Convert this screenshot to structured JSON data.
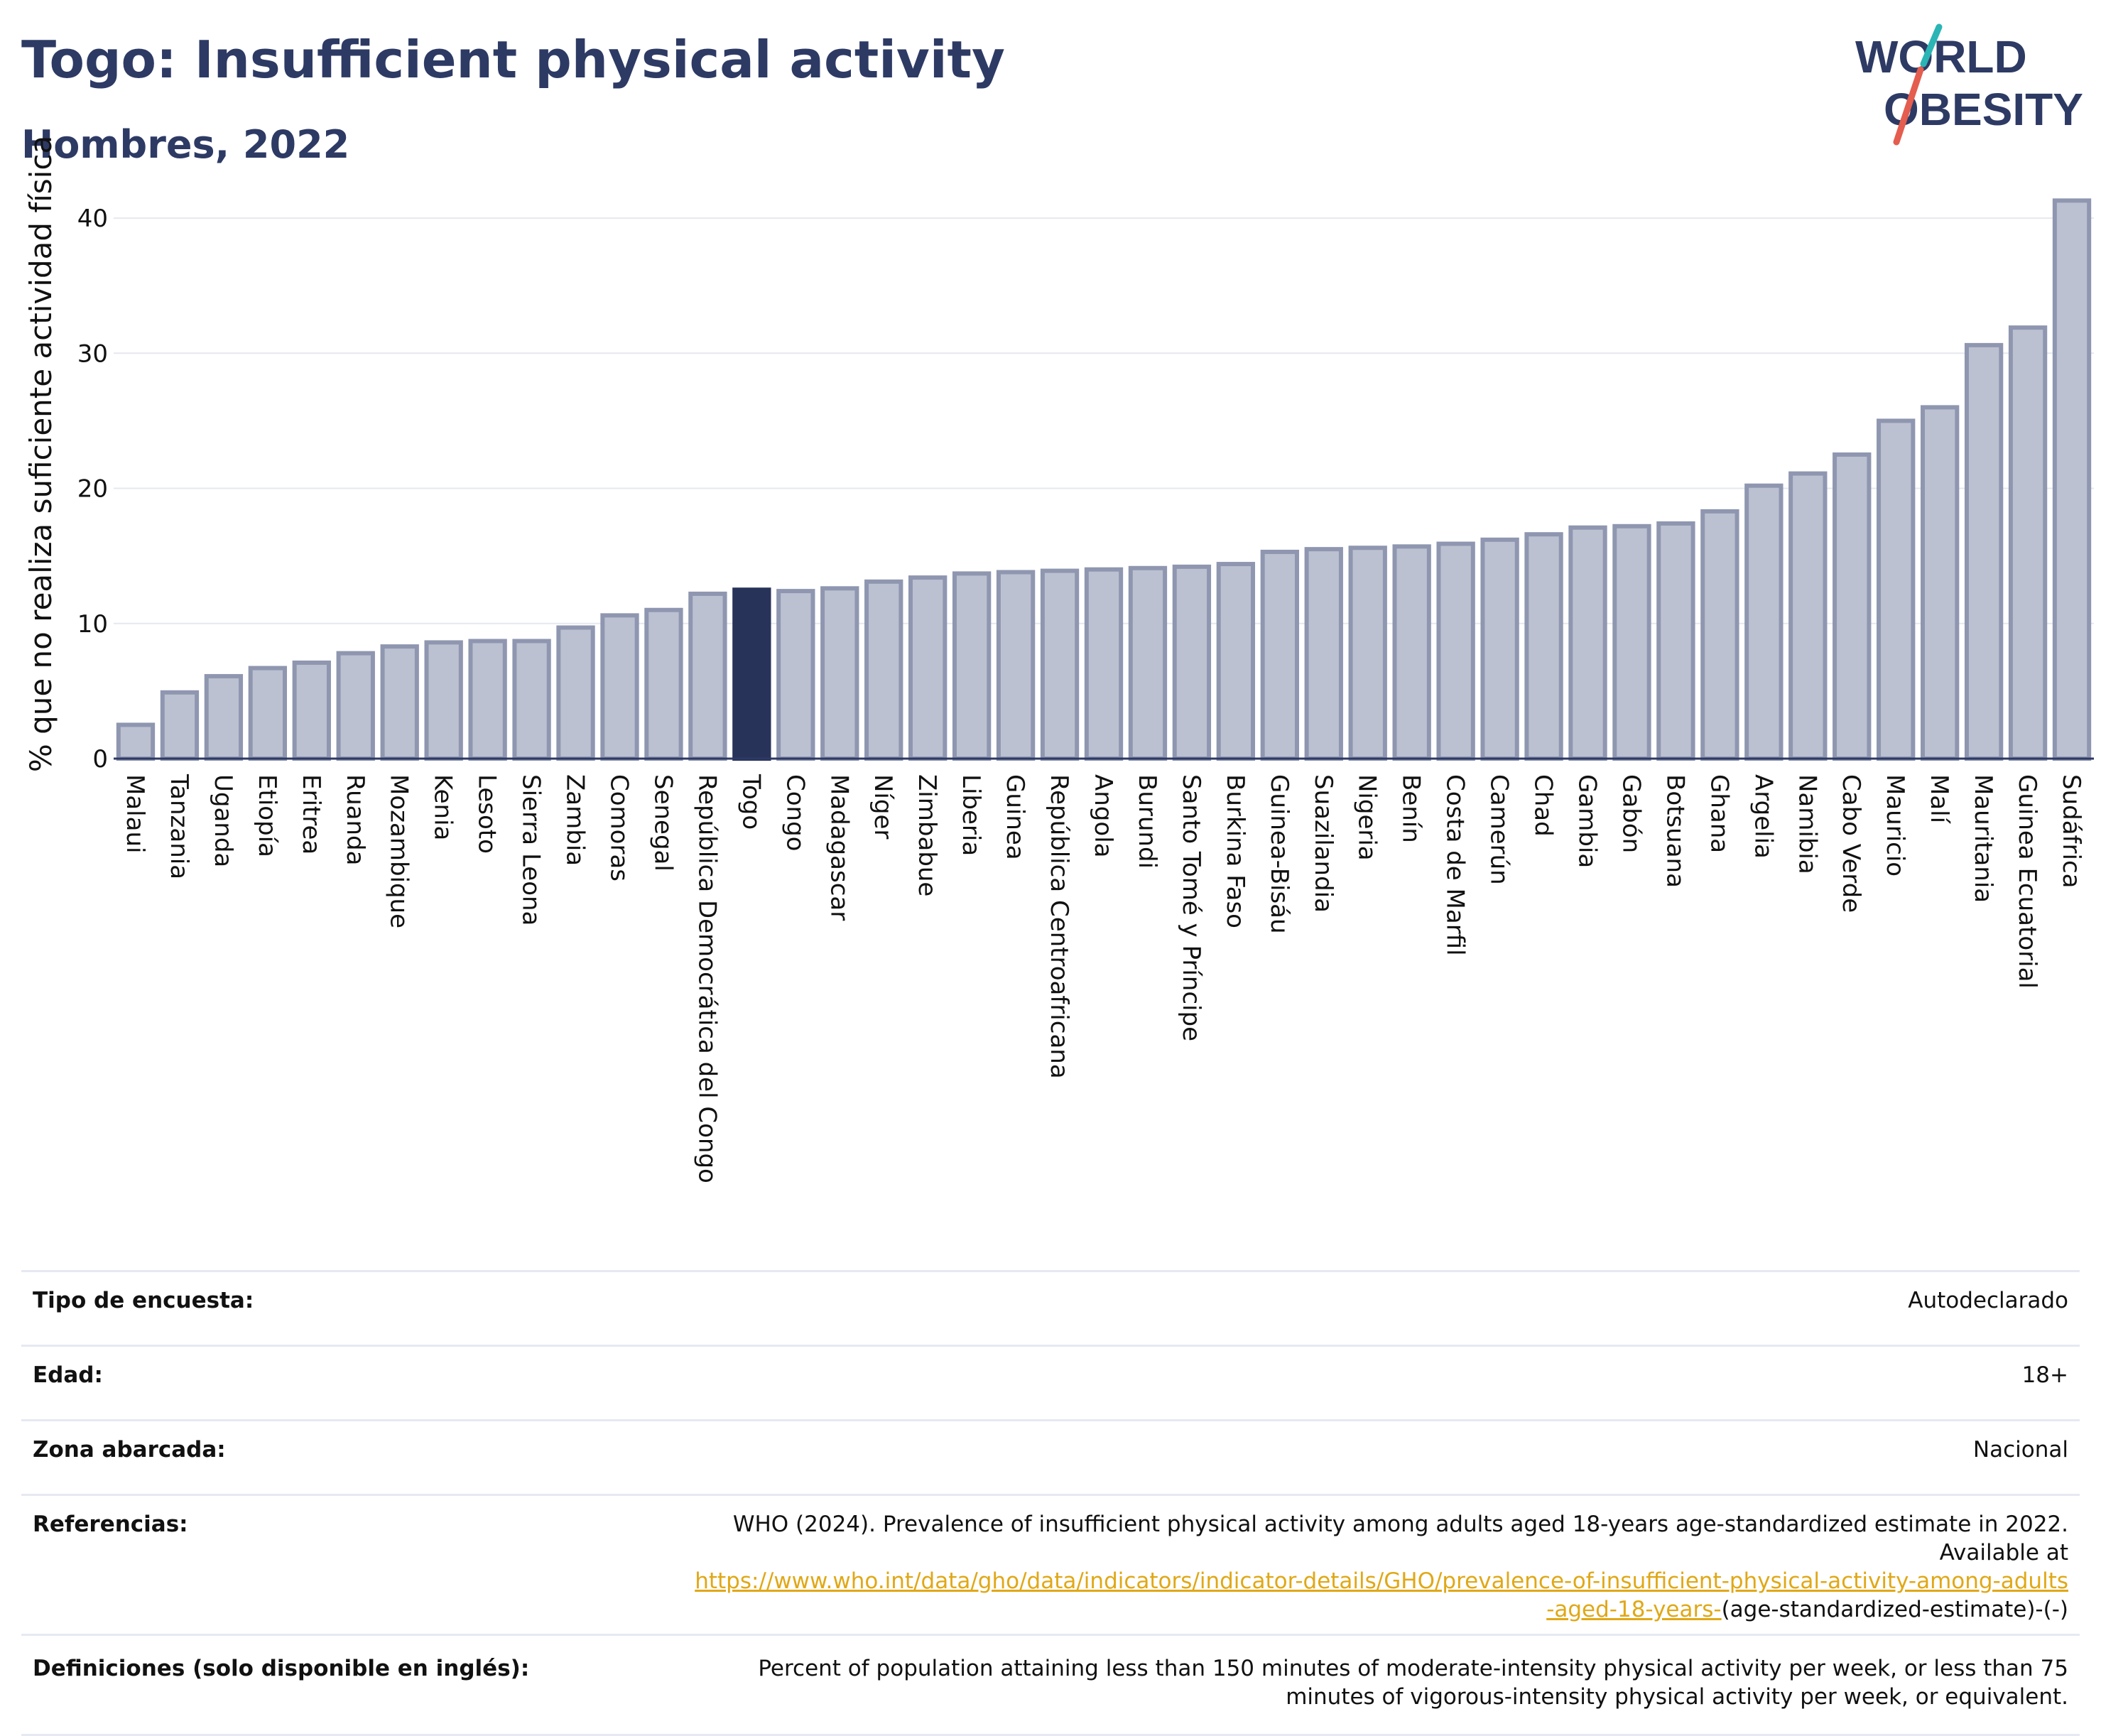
{
  "header": {
    "title": "Togo: Insufficient physical activity",
    "subtitle": "Hombres, 2022",
    "logo_line1": "WORLD",
    "logo_line2": "OBESITY"
  },
  "colors": {
    "title": "#2d3a64",
    "bar": "#bcc1d1",
    "bar_border": "#8f96b0",
    "highlight": "#28335a",
    "logo_teal": "#2bb5b5",
    "logo_red": "#e45d4e"
  },
  "chart_data": {
    "type": "bar",
    "ylabel": "% que no realiza suficiente actividad física",
    "ylim": [
      0,
      43
    ],
    "yticks": [
      0,
      10,
      20,
      30,
      40
    ],
    "grid": true,
    "highlight": "Togo",
    "categories": [
      "Malaui",
      "Tanzania",
      "Uganda",
      "Etiopía",
      "Eritrea",
      "Ruanda",
      "Mozambique",
      "Kenia",
      "Lesoto",
      "Sierra Leona",
      "Zambia",
      "Comoras",
      "Senegal",
      "República Democrática del Congo",
      "Togo",
      "Congo",
      "Madagascar",
      "Níger",
      "Zimbabue",
      "Liberia",
      "Guinea",
      "República Centroafricana",
      "Angola",
      "Burundi",
      "Santo Tomé y Príncipe",
      "Burkina Faso",
      "Guinea-Bisáu",
      "Suazilandia",
      "Nigeria",
      "Benín",
      "Costa de Marfil",
      "Camerún",
      "Chad",
      "Gambia",
      "Gabón",
      "Botsuana",
      "Ghana",
      "Argelia",
      "Namibia",
      "Cabo Verde",
      "Mauricio",
      "Malí",
      "Mauritania",
      "Guinea Ecuatorial",
      "Sudáfrica"
    ],
    "values": [
      2.5,
      4.9,
      6.1,
      6.7,
      7.1,
      7.8,
      8.3,
      8.6,
      8.7,
      8.7,
      9.7,
      10.6,
      11.0,
      12.2,
      12.5,
      12.4,
      12.6,
      13.1,
      13.4,
      13.7,
      13.8,
      13.9,
      14.0,
      14.1,
      14.2,
      14.4,
      15.3,
      15.5,
      15.6,
      15.7,
      15.9,
      16.2,
      16.6,
      17.1,
      17.2,
      17.4,
      18.3,
      20.2,
      21.1,
      22.5,
      25.0,
      26.0,
      30.6,
      31.9,
      41.3
    ]
  },
  "info": {
    "survey_label": "Tipo de encuesta:",
    "survey_value": "Autodeclarado",
    "age_label": "Edad:",
    "age_value": "18+",
    "area_label": "Zona abarcada:",
    "area_value": "Nacional",
    "ref_label": "Referencias:",
    "ref_text": "WHO (2024). Prevalence of insufficient physical activity among adults aged 18-years age-standardized estimate in 2022. Available at",
    "ref_link": "https://www.who.int/data/gho/data/indicators/indicator-details/GHO/prevalence-of-insufficient-physical-activity-among-adults-aged-18-years-",
    "ref_suffix": "(age-standardized-estimate)-(-)",
    "def_label": "Definiciones (solo disponible en inglés):",
    "def_text": "Percent of population attaining less than 150 minutes of moderate-intensity physical activity per week, or less than 75 minutes of vigorous-intensity physical activity per week, or equivalent."
  }
}
